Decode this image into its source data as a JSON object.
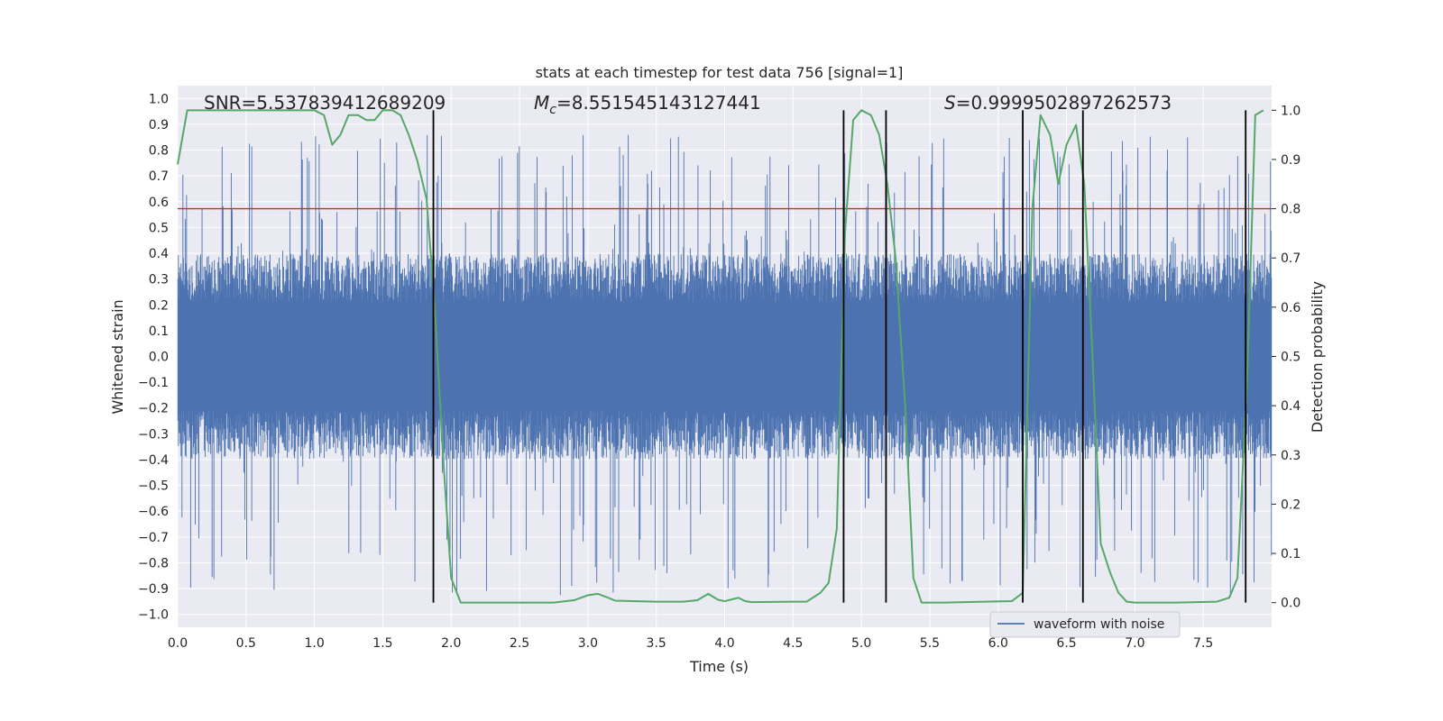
{
  "chart_data": {
    "type": "line",
    "title": "stats at each timestep for test data 756 [signal=1]",
    "xlabel": "Time (s)",
    "ylabel_left": "Whitened strain",
    "ylabel_right": "Detection probability",
    "xlim": [
      0.0,
      8.0
    ],
    "ylim_left": [
      -1.05,
      1.05
    ],
    "ylim_right": [
      -0.05,
      1.05
    ],
    "x_ticks": [
      "0.0",
      "0.5",
      "1.0",
      "1.5",
      "2.0",
      "2.5",
      "3.0",
      "3.5",
      "4.0",
      "4.5",
      "5.0",
      "5.5",
      "6.0",
      "6.5",
      "7.0",
      "7.5"
    ],
    "y_left_ticks": [
      "1.0",
      "0.9",
      "0.8",
      "0.7",
      "0.6",
      "0.5",
      "0.4",
      "0.3",
      "0.2",
      "0.1",
      "0.0",
      "−0.1",
      "−0.2",
      "−0.3",
      "−0.4",
      "−0.5",
      "−0.6",
      "−0.7",
      "−0.8",
      "−0.9",
      "−1.0"
    ],
    "y_right_ticks": [
      "1.0",
      "0.9",
      "0.8",
      "0.7",
      "0.6",
      "0.5",
      "0.4",
      "0.3",
      "0.2",
      "0.1",
      "0.0"
    ],
    "grid": true,
    "legend": {
      "position": "bottom-right",
      "entries": [
        "waveform with noise"
      ]
    },
    "annotations": {
      "snr": "SNR=5.537839412689209",
      "mc_symbol": "M",
      "mc_sub": "c",
      "mc_value": "=8.551545143127441",
      "s_symbol": "S",
      "s_value": "=0.9999502897262573"
    },
    "threshold_line": {
      "axis": "right",
      "value": 0.8,
      "color": "#d62728"
    },
    "vertical_lines": [
      1.87,
      4.87,
      5.18,
      6.18,
      6.62,
      7.81
    ],
    "waveform": {
      "name": "waveform with noise",
      "color": "#4c72b0",
      "envelope_typical": 0.38,
      "max_peak": 0.86,
      "min_peak": -0.93
    },
    "detection_probability": {
      "color": "#55a868",
      "x": [
        0.0,
        0.07,
        0.2,
        0.5,
        0.8,
        1.0,
        1.07,
        1.13,
        1.19,
        1.25,
        1.32,
        1.38,
        1.44,
        1.5,
        1.57,
        1.63,
        1.69,
        1.75,
        1.82,
        1.88,
        1.94,
        2.0,
        2.07,
        2.2,
        2.5,
        2.75,
        2.9,
        3.0,
        3.07,
        3.13,
        3.2,
        3.5,
        3.7,
        3.8,
        3.88,
        3.95,
        4.0,
        4.1,
        4.15,
        4.2,
        4.5,
        4.6,
        4.7,
        4.76,
        4.82,
        4.88,
        4.94,
        5.0,
        5.07,
        5.13,
        5.19,
        5.25,
        5.32,
        5.38,
        5.44,
        5.6,
        5.9,
        6.1,
        6.18,
        6.25,
        6.31,
        6.38,
        6.44,
        6.5,
        6.57,
        6.63,
        6.69,
        6.75,
        6.82,
        6.88,
        6.94,
        7.0,
        7.3,
        7.6,
        7.69,
        7.75,
        7.82,
        7.88,
        7.94
      ],
      "y": [
        0.89,
        1.0,
        1.0,
        1.0,
        1.0,
        1.0,
        0.99,
        0.93,
        0.95,
        0.99,
        0.99,
        0.98,
        0.98,
        1.0,
        1.0,
        0.99,
        0.95,
        0.9,
        0.82,
        0.6,
        0.3,
        0.05,
        0.0,
        0.0,
        0.0,
        0.0,
        0.005,
        0.015,
        0.018,
        0.012,
        0.004,
        0.002,
        0.002,
        0.005,
        0.018,
        0.006,
        0.003,
        0.01,
        0.003,
        0.001,
        0.002,
        0.002,
        0.02,
        0.04,
        0.15,
        0.75,
        0.98,
        1.0,
        0.99,
        0.95,
        0.85,
        0.7,
        0.4,
        0.05,
        0.0,
        0.0,
        0.002,
        0.003,
        0.02,
        0.8,
        0.99,
        0.95,
        0.85,
        0.93,
        0.97,
        0.85,
        0.5,
        0.12,
        0.06,
        0.02,
        0.002,
        0.0,
        0.0,
        0.002,
        0.01,
        0.05,
        0.45,
        0.99,
        1.0
      ]
    }
  }
}
